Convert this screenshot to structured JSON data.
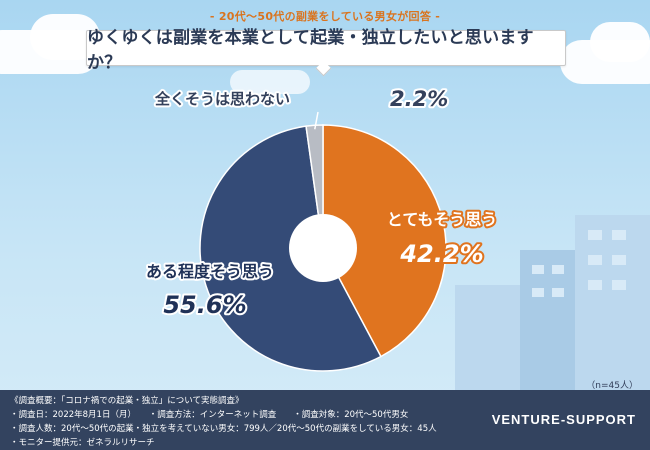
{
  "header": {
    "subtitle": "- 20代～50代の副業をしている男女が回答 -",
    "question": "ゆくゆくは副業を本業として起業・独立したいと思いますか？"
  },
  "chart_data": {
    "type": "pie",
    "title": "ゆくゆくは副業を本業として起業・独立したいと思いますか？",
    "slices": [
      {
        "label": "とてもそう思う",
        "value": 42.2,
        "value_text": "42.2%",
        "color": "#e0741f"
      },
      {
        "label": "ある程度そう思う",
        "value": 55.6,
        "value_text": "55.6%",
        "color": "#344b77"
      },
      {
        "label": "全くそうは思わない",
        "value": 2.2,
        "value_text": "2.2%",
        "color": "#b8bcc4"
      }
    ],
    "start": "12 o'clock, clockwise",
    "donut": true
  },
  "sample_note": "（n=45人）",
  "footer": {
    "lines": [
      "《調査概要：「コロナ禍での起業・独立」について実態調査》",
      "・調査日：2022年8月1日（月）　　・調査方法：インターネット調査　　・調査対象：20代～50代男女",
      "・調査人数：20代～50代の起業・独立を考えていない男女：799人／20代～50代の副業をしている男女：45人",
      "・モニター提供元：ゼネラルリサーチ"
    ],
    "brand": "VENTURE-SUPPORT"
  }
}
